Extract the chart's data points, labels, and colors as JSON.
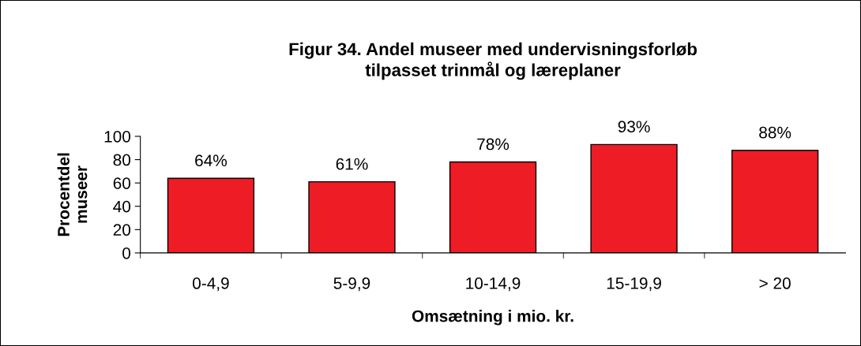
{
  "chart_data": {
    "type": "bar",
    "title": "Figur 34. Andel museer med undervisningsforløb\ntilpasset trinmål og læreplaner",
    "xlabel": "Omsætning i mio. kr.",
    "ylabel": "Procentdel\nmuseer",
    "categories": [
      "0-4,9",
      "5-9,9",
      "10-14,9",
      "15-19,9",
      "> 20"
    ],
    "values": [
      64,
      61,
      78,
      93,
      88
    ],
    "value_labels": [
      "64%",
      "61%",
      "78%",
      "93%",
      "88%"
    ],
    "color": "#ee1c25",
    "ylim": [
      0,
      100
    ],
    "yticks": [
      0,
      20,
      40,
      60,
      80,
      100
    ],
    "grid": false,
    "legend": false
  }
}
